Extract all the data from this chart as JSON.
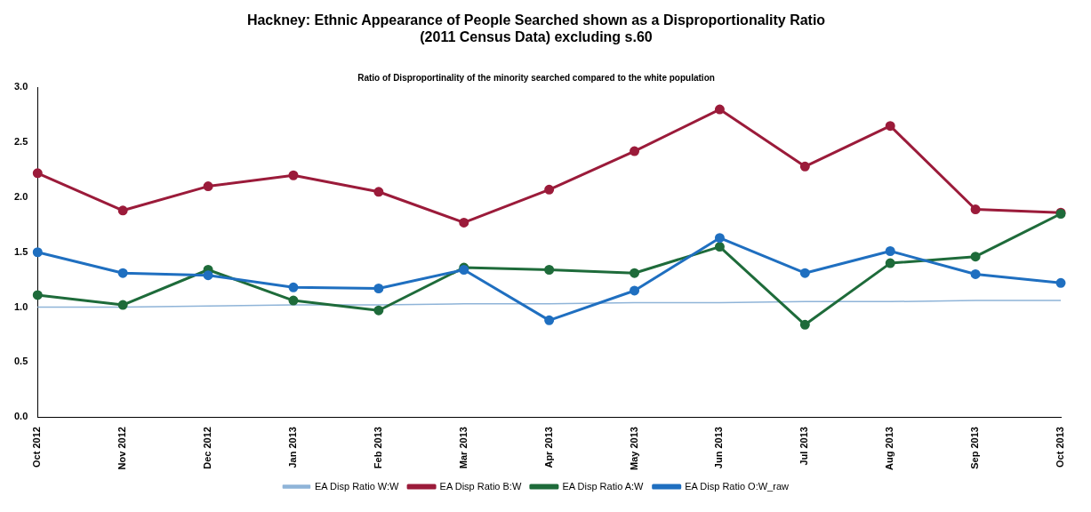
{
  "chart_data": {
    "type": "line",
    "title": "Hackney: Ethnic Appearance of People Searched shown as a Disproportionality Ratio\n(2011 Census Data) excluding s.60",
    "subtitle": "Ratio of Disproportinality of the minority searched compared to the white population",
    "categories": [
      "Oct 2012",
      "Nov 2012",
      "Dec 2012",
      "Jan 2013",
      "Feb 2013",
      "Mar 2013",
      "Apr 2013",
      "May 2013",
      "Jun 2013",
      "Jul 2013",
      "Aug 2013",
      "Sep 2013",
      "Oct 2013"
    ],
    "series": [
      {
        "name": "EA Disp Ratio W:W",
        "color": "#8fb4d8",
        "marker": "none",
        "values": [
          1.0,
          1.0,
          1.01,
          1.02,
          1.02,
          1.03,
          1.03,
          1.04,
          1.04,
          1.05,
          1.05,
          1.06,
          1.06
        ]
      },
      {
        "name": "EA Disp Ratio B:W",
        "color": "#9b1b3a",
        "values": [
          2.22,
          1.88,
          2.1,
          2.2,
          2.05,
          1.77,
          2.07,
          2.42,
          2.8,
          2.28,
          2.65,
          1.89,
          1.86
        ]
      },
      {
        "name": "EA Disp Ratio A:W",
        "color": "#1e6b3a",
        "values": [
          1.11,
          1.02,
          1.34,
          1.06,
          0.97,
          1.36,
          1.34,
          1.31,
          1.55,
          0.84,
          1.4,
          1.46,
          1.85
        ]
      },
      {
        "name": "EA Disp Ratio O:W_raw",
        "color": "#1f6fc0",
        "values": [
          1.5,
          1.31,
          1.29,
          1.18,
          1.17,
          1.34,
          0.88,
          1.15,
          1.63,
          1.31,
          1.51,
          1.3,
          1.22
        ]
      }
    ],
    "ylim": [
      0,
      3
    ],
    "yticks": [
      {
        "value": 0,
        "label": "0.0"
      },
      0.5,
      {
        "value": 1,
        "label": "1.0"
      },
      1.5,
      {
        "value": 2,
        "label": "2.0"
      },
      2.5,
      {
        "value": 3,
        "label": "3.0"
      }
    ],
    "grid": false,
    "legend": "bottom",
    "marker": "circle",
    "line_style": "solid"
  }
}
